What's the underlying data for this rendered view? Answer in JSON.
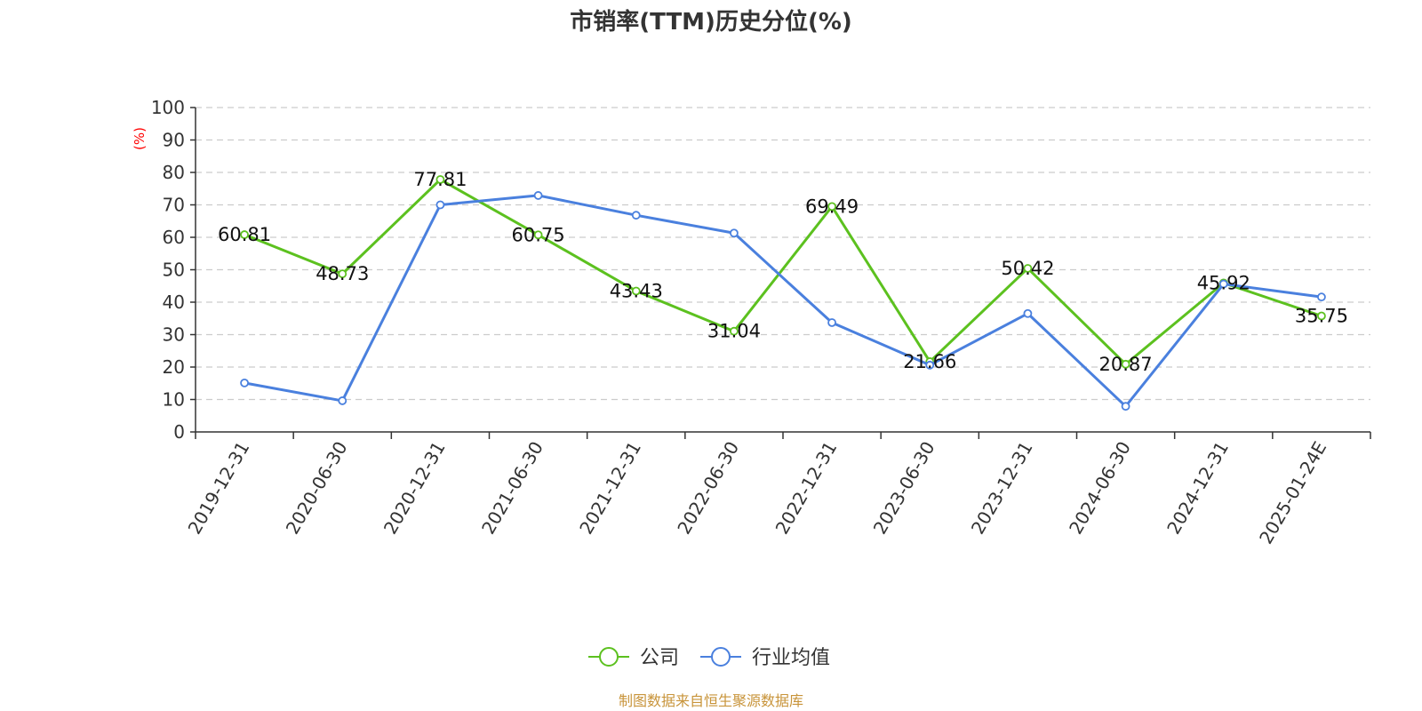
{
  "chart_data": {
    "type": "line",
    "title": "市销率(TTM)历史分位(%)",
    "ylabel": "(%)",
    "xlabel": "",
    "ylim": [
      0,
      100
    ],
    "yticks": [
      0,
      10,
      20,
      30,
      40,
      50,
      60,
      70,
      80,
      90,
      100
    ],
    "grid": true,
    "legend_position": "bottom-center",
    "categories": [
      "2019-12-31",
      "2020-06-30",
      "2020-12-31",
      "2021-06-30",
      "2021-12-31",
      "2022-06-30",
      "2022-12-31",
      "2023-06-30",
      "2023-12-31",
      "2024-06-30",
      "2024-12-31",
      "2025-01-24E"
    ],
    "series": [
      {
        "name": "公司",
        "color": "#5cc11f",
        "values": [
          60.81,
          48.73,
          77.81,
          60.75,
          43.43,
          31.04,
          69.49,
          21.66,
          50.42,
          20.87,
          45.92,
          35.75
        ],
        "data_labels": [
          "60.81",
          "48.73",
          "77.81",
          "60.75",
          "43.43",
          "31.04",
          "69.49",
          "21.66",
          "50.42",
          "20.87",
          "45.92",
          "35.75"
        ]
      },
      {
        "name": "行业均值",
        "color": "#4a80de",
        "values": [
          15.1,
          9.6,
          70.0,
          72.9,
          66.8,
          61.3,
          33.7,
          20.6,
          36.5,
          7.9,
          45.6,
          41.6
        ]
      }
    ]
  },
  "footer": {
    "source": "制图数据来自恒生聚源数据库",
    "color": "#c8943a"
  },
  "style": {
    "title_color": "#333333",
    "ylabel_color": "#ff0000",
    "axis_color": "#333333",
    "grid_color": "#cccccc"
  }
}
